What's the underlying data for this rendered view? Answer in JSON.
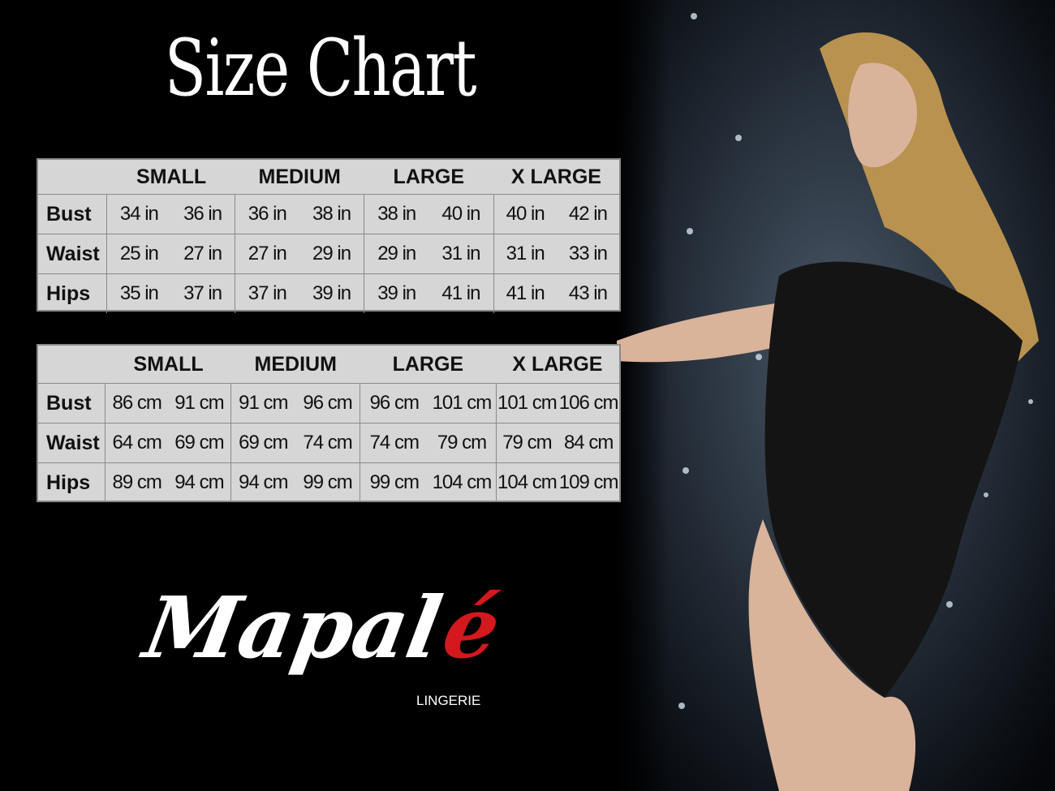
{
  "title": "Size Chart",
  "tables": [
    {
      "unit": "in",
      "sizes": [
        "SMALL",
        "MEDIUM",
        "LARGE",
        "X LARGE"
      ],
      "rows": [
        {
          "label": "Bust",
          "values": [
            "34 in",
            "36 in",
            "36 in",
            "38 in",
            "38 in",
            "40 in",
            "40 in",
            "42 in"
          ]
        },
        {
          "label": "Waist",
          "values": [
            "25 in",
            "27 in",
            "27 in",
            "29 in",
            "29 in",
            "31 in",
            "31 in",
            "33 in"
          ]
        },
        {
          "label": "Hips",
          "values": [
            "35 in",
            "37 in",
            "37 in",
            "39 in",
            "39 in",
            "41 in",
            "41 in",
            "43 in"
          ]
        }
      ]
    },
    {
      "unit": "cm",
      "sizes": [
        "SMALL",
        "MEDIUM",
        "LARGE",
        "X LARGE"
      ],
      "rows": [
        {
          "label": "Bust",
          "values": [
            "86 cm",
            "91 cm",
            "91 cm",
            "96 cm",
            "96 cm",
            "101 cm",
            "101 cm",
            "106 cm"
          ]
        },
        {
          "label": "Waist",
          "values": [
            "64 cm",
            "69 cm",
            "69 cm",
            "74 cm",
            "74 cm",
            "79 cm",
            "79 cm",
            "84 cm"
          ]
        },
        {
          "label": "Hips",
          "values": [
            "89 cm",
            "94 cm",
            "94 cm",
            "99 cm",
            "99 cm",
            "104 cm",
            "104 cm",
            "109 cm"
          ]
        }
      ]
    }
  ],
  "brand": {
    "name_main": "Mapal",
    "name_accent": "é",
    "subtitle": "LINGERIE",
    "accent_color": "#d3181e"
  },
  "colors": {
    "background": "#000000",
    "table_bg": "#d6d6d6",
    "table_border": "#8a8a8a"
  }
}
